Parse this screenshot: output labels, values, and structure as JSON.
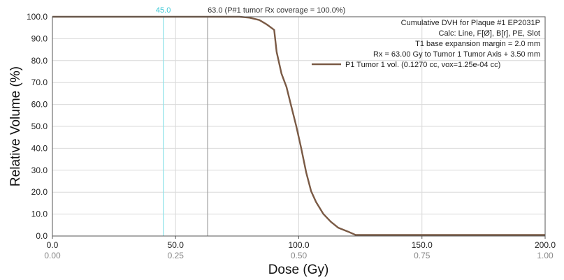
{
  "chart_data": {
    "type": "line",
    "xlabel": "Dose (Gy)",
    "ylabel": "Relative Volume (%)",
    "xlim": [
      0,
      200
    ],
    "ylim": [
      0,
      100
    ],
    "x_ticks": [
      "0.0",
      "50.0",
      "100.0",
      "150.0",
      "200.0"
    ],
    "x_ticks_secondary": [
      "0.00",
      "0.25",
      "0.50",
      "0.75",
      "1.00"
    ],
    "y_ticks": [
      "0.0",
      "10.0",
      "20.0",
      "30.0",
      "40.0",
      "50.0",
      "60.0",
      "70.0",
      "80.0",
      "90.0",
      "100.0"
    ],
    "grid": true,
    "annotations": [
      "Cumulative DVH for Plaque #1 EP2031P",
      "Calc: Line, F[Ø], B[r], PE, Slot",
      "T1  base expansion margin = 2.0 mm",
      "Rx = 63.00 Gy to Tumor 1 Tumor Axis + 3.50 mm"
    ],
    "reference_lines": [
      {
        "x": 45,
        "label": "45.0",
        "color": "#8fe3ea"
      },
      {
        "x": 63,
        "label": "63.0 (P#1 tumor Rx coverage = 100.0%)",
        "color": "#a0a0a0"
      }
    ],
    "legend_position": "top-right",
    "series": [
      {
        "name": "P1 Tumor 1 vol. (0.1270 cc, vox=1.25e-04 cc)",
        "color": "#7a5a45",
        "x": [
          0,
          50,
          76,
          80,
          84,
          87,
          90,
          91,
          93,
          95,
          97,
          99,
          101,
          103,
          105,
          107,
          110,
          113,
          116,
          120,
          123,
          200
        ],
        "y": [
          100,
          100,
          100,
          99.6,
          98.5,
          96.5,
          94,
          84,
          74,
          68,
          59,
          50,
          40,
          29,
          20.5,
          15.5,
          10,
          6.5,
          3.8,
          2,
          0.5,
          0.5
        ]
      }
    ]
  }
}
